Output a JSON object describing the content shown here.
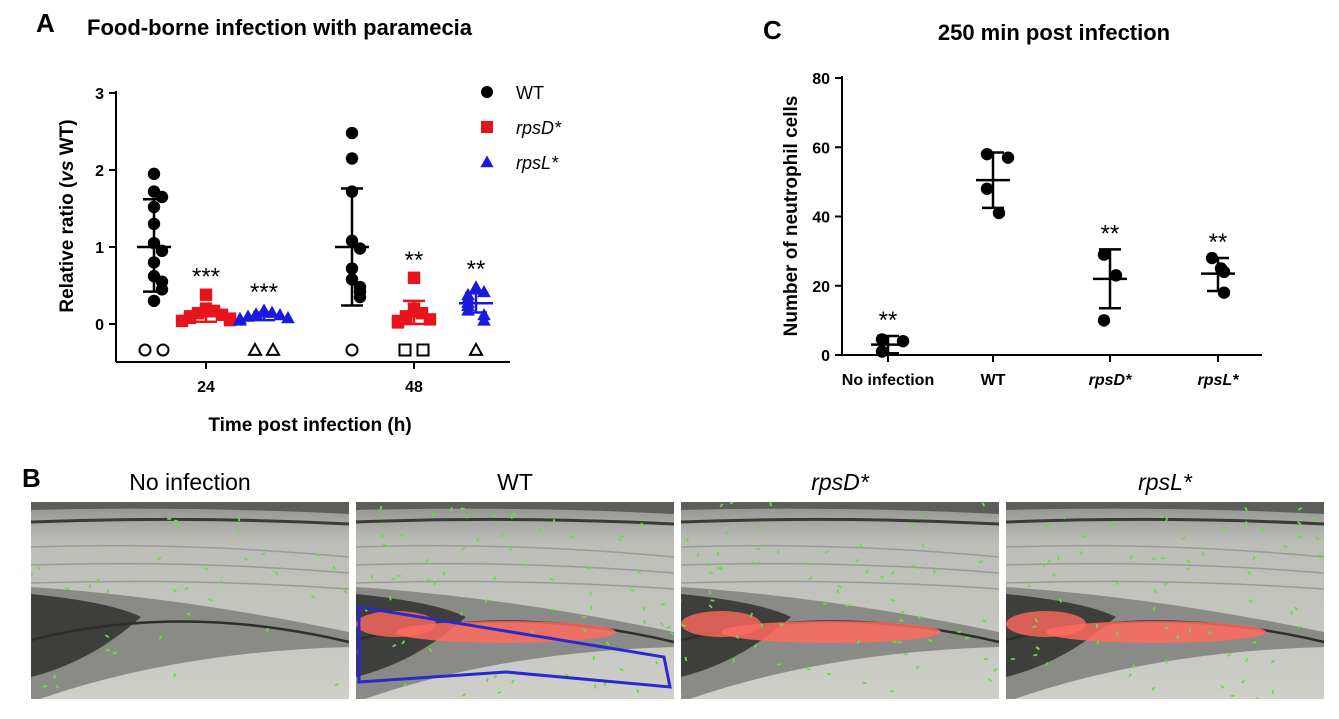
{
  "panels": {
    "a_letter": "A",
    "b_letter": "B",
    "c_letter": "C"
  },
  "colors": {
    "wt": "#000000",
    "rpsD": "#e8141b",
    "rpsL": "#1a1adf",
    "roi_outline": "#2a2acc",
    "fluorescence": "#ff6a5e",
    "neutrophils": "#66dd44"
  },
  "chart_data": [
    {
      "id": "A",
      "type": "scatter",
      "title": "Food-borne infection with paramecia",
      "xlabel": "Time post infection (h)",
      "ylabel_prefix": "Relative ratio (",
      "ylabel_italic": "vs",
      "ylabel_suffix": " WT)",
      "ylim": [
        0,
        3
      ],
      "yticks": [
        "0",
        "1",
        "2",
        "3"
      ],
      "categories": [
        "24",
        "48"
      ],
      "legend_position": "top-right",
      "series": [
        {
          "name": "WT",
          "marker": "circle",
          "color": "#000000",
          "groups": [
            {
              "x": "24",
              "mean": 1.0,
              "sd_low": 0.42,
              "sd_high": 1.62,
              "significance": "",
              "values": [
                1.95,
                1.72,
                1.65,
                1.52,
                1.3,
                1.05,
                0.95,
                0.8,
                0.62,
                0.55,
                0.45,
                0.3
              ],
              "open_markers": 2
            },
            {
              "x": "48",
              "mean": 1.0,
              "sd_low": 0.24,
              "sd_high": 1.76,
              "significance": "",
              "values": [
                2.48,
                2.15,
                1.72,
                1.08,
                0.98,
                0.72,
                0.58,
                0.48,
                0.42,
                0.35
              ],
              "open_markers": 1
            }
          ]
        },
        {
          "name": "rpsD*",
          "marker": "square",
          "color": "#e8141b",
          "groups": [
            {
              "x": "24",
              "mean": 0.1,
              "sd_low": 0.03,
              "sd_high": 0.17,
              "significance": "***",
              "values": [
                0.38,
                0.2,
                0.17,
                0.14,
                0.12,
                0.1,
                0.08,
                0.07,
                0.05,
                0.04
              ],
              "open_markers": 0
            },
            {
              "x": "48",
              "mean": 0.1,
              "sd_low": 0.0,
              "sd_high": 0.3,
              "significance": "**",
              "values": [
                0.6,
                0.2,
                0.14,
                0.1,
                0.08,
                0.06,
                0.04,
                0.02
              ],
              "open_markers": 2
            }
          ]
        },
        {
          "name": "rpsL*",
          "marker": "triangle",
          "color": "#1a1adf",
          "groups": [
            {
              "x": "24",
              "mean": 0.1,
              "sd_low": 0.05,
              "sd_high": 0.15,
              "significance": "***",
              "values": [
                0.18,
                0.15,
                0.13,
                0.12,
                0.1,
                0.08,
                0.07,
                0.05
              ],
              "open_markers": 2
            },
            {
              "x": "48",
              "mean": 0.27,
              "sd_low": 0.15,
              "sd_high": 0.4,
              "significance": "**",
              "values": [
                0.48,
                0.42,
                0.38,
                0.33,
                0.28,
                0.24,
                0.18,
                0.12,
                0.05
              ],
              "open_markers": 1
            }
          ]
        }
      ]
    },
    {
      "id": "C",
      "type": "scatter",
      "title": "250 min post infection",
      "ylabel": "Number of neutrophil cells",
      "ylim": [
        0,
        80
      ],
      "yticks": [
        "0",
        "20",
        "40",
        "60",
        "80"
      ],
      "categories": [
        {
          "label": "No infection",
          "italic": false
        },
        {
          "label": "WT",
          "italic": false
        },
        {
          "label": "rpsD*",
          "italic": true
        },
        {
          "label": "rpsL*",
          "italic": true
        }
      ],
      "groups": [
        {
          "x": "No infection",
          "mean": 3,
          "sd_low": 0.5,
          "sd_high": 5.5,
          "significance": "**",
          "values": [
            4.5,
            4,
            1
          ]
        },
        {
          "x": "WT",
          "mean": 50.5,
          "sd_low": 42.5,
          "sd_high": 58.5,
          "significance": "",
          "values": [
            58,
            57,
            48,
            41
          ]
        },
        {
          "x": "rpsD*",
          "mean": 22,
          "sd_low": 13.5,
          "sd_high": 30.5,
          "significance": "**",
          "values": [
            29,
            23,
            10
          ]
        },
        {
          "x": "rpsL*",
          "mean": 23.5,
          "sd_low": 18.5,
          "sd_high": 28,
          "significance": "**",
          "values": [
            28,
            24,
            25,
            18
          ]
        }
      ]
    }
  ],
  "images": [
    {
      "title": "No infection",
      "italic": false,
      "fluorescence": "none",
      "roi_outline": false
    },
    {
      "title": "WT",
      "italic": false,
      "fluorescence": "strong",
      "roi_outline": true
    },
    {
      "title": "rpsD*",
      "italic": true,
      "fluorescence": "strong",
      "roi_outline": false
    },
    {
      "title": "rpsL*",
      "italic": true,
      "fluorescence": "strong",
      "roi_outline": false
    }
  ]
}
